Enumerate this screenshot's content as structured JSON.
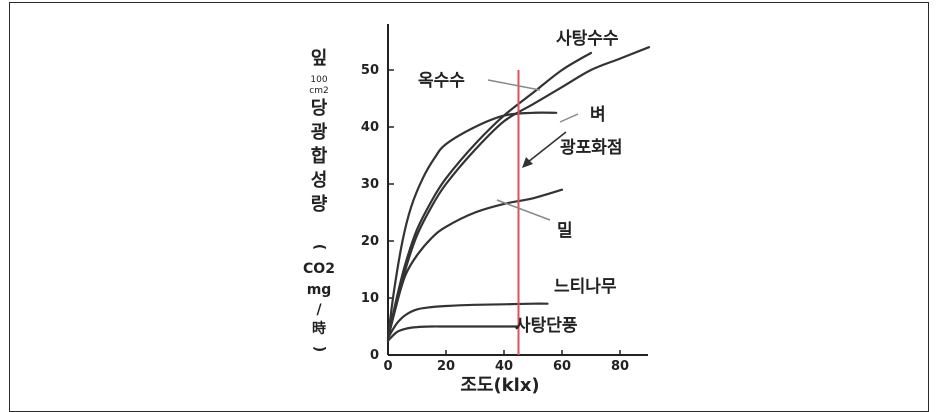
{
  "chart_data": {
    "type": "line",
    "xlabel": "조도(klx)",
    "ylabel_parts": [
      "잎",
      "100",
      "cm2",
      "당",
      "광",
      "합",
      "성",
      "량",
      "(",
      "CO2",
      "mg",
      "/",
      "時",
      ")"
    ],
    "xlim": [
      0,
      90
    ],
    "ylim": [
      0,
      56
    ],
    "xticks": [
      0,
      20,
      40,
      60,
      80
    ],
    "yticks": [
      0,
      10,
      20,
      30,
      40,
      50
    ],
    "series": [
      {
        "name": "사탕수수",
        "color": "#333333",
        "x": [
          0,
          3,
          6,
          10,
          15,
          20,
          30,
          40,
          50,
          60,
          70
        ],
        "y": [
          3,
          10,
          16,
          22,
          27,
          31,
          37,
          42,
          46,
          50,
          53
        ]
      },
      {
        "name": "옥수수",
        "color": "#333333",
        "x": [
          0,
          3,
          6,
          10,
          15,
          20,
          30,
          40,
          50,
          60,
          70,
          80,
          90
        ],
        "y": [
          3,
          9,
          15,
          21,
          26,
          30,
          36,
          41,
          44,
          47,
          50,
          52,
          54
        ]
      },
      {
        "name": "벼",
        "color": "#333333",
        "x": [
          0,
          2,
          5,
          8,
          12,
          16,
          20,
          30,
          40,
          50,
          58
        ],
        "y": [
          3,
          11,
          20,
          26,
          31,
          34.5,
          37,
          40,
          42,
          42.5,
          42.5
        ]
      },
      {
        "name": "밀",
        "color": "#333333",
        "x": [
          0,
          3,
          6,
          10,
          15,
          20,
          30,
          40,
          50,
          60
        ],
        "y": [
          3,
          9,
          14,
          17.5,
          20.5,
          22.5,
          25,
          26.5,
          27.5,
          29
        ]
      },
      {
        "name": "느티나무",
        "color": "#333333",
        "x": [
          0,
          3,
          6,
          10,
          15,
          20,
          30,
          40,
          50,
          55
        ],
        "y": [
          3,
          5.5,
          7,
          8,
          8.4,
          8.6,
          8.8,
          8.9,
          9,
          9
        ]
      },
      {
        "name": "사탕단풍",
        "color": "#333333",
        "x": [
          0,
          3,
          6,
          10,
          15,
          20,
          30,
          40,
          45
        ],
        "y": [
          2.5,
          4,
          4.6,
          4.9,
          5,
          5,
          5,
          5,
          5
        ]
      }
    ],
    "vline": {
      "x": 45,
      "color": "#e0505a"
    },
    "annotations": [
      "광포화점"
    ]
  }
}
